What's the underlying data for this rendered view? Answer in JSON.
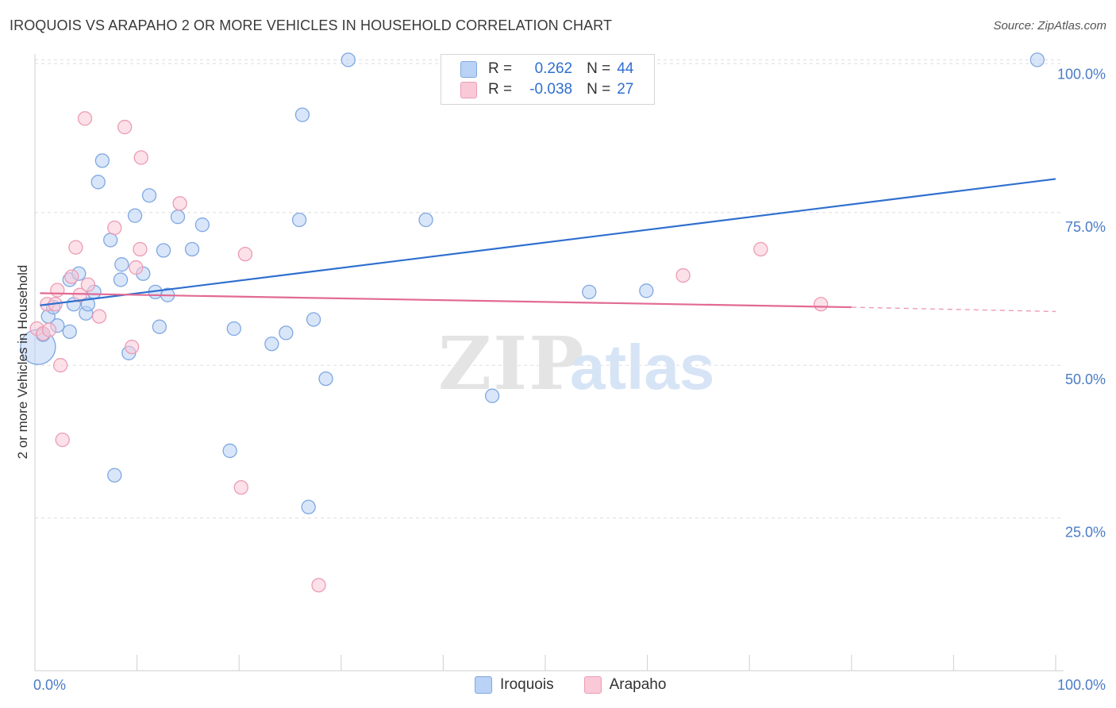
{
  "title": "IROQUOIS VS ARAPAHO 2 OR MORE VEHICLES IN HOUSEHOLD CORRELATION CHART",
  "source": "Source: ZipAtlas.com",
  "watermark": {
    "zip": "ZIP",
    "atlas": "atlas"
  },
  "legend": {
    "r_label": "R =",
    "n_label": "N =",
    "rows": [
      {
        "name": "Iroquois",
        "r": "0.262",
        "n": "44"
      },
      {
        "name": "Arapaho",
        "r": "-0.038",
        "n": "27"
      }
    ]
  },
  "colors": {
    "iroquois_fill": "#b9d2f5",
    "iroquois_stroke": "#7fa8e0",
    "iroquois_line": "#2f6fcf",
    "arapaho_fill": "#f9c9d7",
    "arapaho_stroke": "#ec9cb5",
    "arapaho_line": "#e26a94",
    "axis_text": "#4a7cc7",
    "grid": "#dddddd"
  },
  "chart_data": {
    "type": "scatter",
    "title": "IROQUOIS VS ARAPAHO 2 OR MORE VEHICLES IN HOUSEHOLD CORRELATION CHART",
    "xlabel": "",
    "ylabel": "2 or more Vehicles in Household",
    "xlim": [
      0,
      100
    ],
    "ylim": [
      0,
      102
    ],
    "x_tick_labels": [
      "0.0%",
      "100.0%"
    ],
    "y_ticks": [
      25,
      50,
      75,
      100
    ],
    "y_tick_labels": [
      "25.0%",
      "50.0%",
      "75.0%",
      "100.0%"
    ],
    "series": [
      {
        "name": "Iroquois",
        "points": [
          [
            0.3,
            53.0
          ],
          [
            0.8,
            55.0
          ],
          [
            1.3,
            58.0
          ],
          [
            1.8,
            59.5
          ],
          [
            2.2,
            56.5
          ],
          [
            3.4,
            64.0
          ],
          [
            3.4,
            55.5
          ],
          [
            3.8,
            60.0
          ],
          [
            4.3,
            65.0
          ],
          [
            5.0,
            58.5
          ],
          [
            5.2,
            60.0
          ],
          [
            5.8,
            62.0
          ],
          [
            6.2,
            80.0
          ],
          [
            6.6,
            83.5
          ],
          [
            7.4,
            70.5
          ],
          [
            7.8,
            32.0
          ],
          [
            8.4,
            64.0
          ],
          [
            8.5,
            66.5
          ],
          [
            9.2,
            52.0
          ],
          [
            9.8,
            74.5
          ],
          [
            10.6,
            65.0
          ],
          [
            11.2,
            77.8
          ],
          [
            11.8,
            62.0
          ],
          [
            12.2,
            56.3
          ],
          [
            12.6,
            68.8
          ],
          [
            13.0,
            61.5
          ],
          [
            14.0,
            74.3
          ],
          [
            15.4,
            69.0
          ],
          [
            16.4,
            73.0
          ],
          [
            19.1,
            36.0
          ],
          [
            19.5,
            56.0
          ],
          [
            23.2,
            53.5
          ],
          [
            24.6,
            55.3
          ],
          [
            25.9,
            73.8
          ],
          [
            26.2,
            91.0
          ],
          [
            26.8,
            26.8
          ],
          [
            27.3,
            57.5
          ],
          [
            28.5,
            47.8
          ],
          [
            30.7,
            100.0
          ],
          [
            38.3,
            73.8
          ],
          [
            44.8,
            45.0
          ],
          [
            54.3,
            62.0
          ],
          [
            59.9,
            62.2
          ],
          [
            98.2,
            100.0
          ]
        ],
        "trend": {
          "x": [
            0.5,
            100
          ],
          "y": [
            59.8,
            80.5
          ]
        }
      },
      {
        "name": "Arapaho",
        "points": [
          [
            0.2,
            56.0
          ],
          [
            0.8,
            55.2
          ],
          [
            1.2,
            60.0
          ],
          [
            1.4,
            55.8
          ],
          [
            2.0,
            60.0
          ],
          [
            2.2,
            62.3
          ],
          [
            2.5,
            50.0
          ],
          [
            2.7,
            37.8
          ],
          [
            3.6,
            64.5
          ],
          [
            4.0,
            69.3
          ],
          [
            4.4,
            61.5
          ],
          [
            4.9,
            90.4
          ],
          [
            5.2,
            63.2
          ],
          [
            6.3,
            58.0
          ],
          [
            7.8,
            72.5
          ],
          [
            8.8,
            89.0
          ],
          [
            9.5,
            53.0
          ],
          [
            9.9,
            66.0
          ],
          [
            10.3,
            69.0
          ],
          [
            10.4,
            84.0
          ],
          [
            14.2,
            76.5
          ],
          [
            20.2,
            30.0
          ],
          [
            20.6,
            68.2
          ],
          [
            27.8,
            14.0
          ],
          [
            63.5,
            64.7
          ],
          [
            71.1,
            69.0
          ],
          [
            77.0,
            60.0
          ]
        ],
        "trend": {
          "x": [
            0.5,
            80
          ],
          "y": [
            61.8,
            59.5
          ]
        },
        "trend_dashed": {
          "x": [
            80,
            100
          ],
          "y": [
            59.5,
            58.8
          ]
        }
      }
    ]
  }
}
